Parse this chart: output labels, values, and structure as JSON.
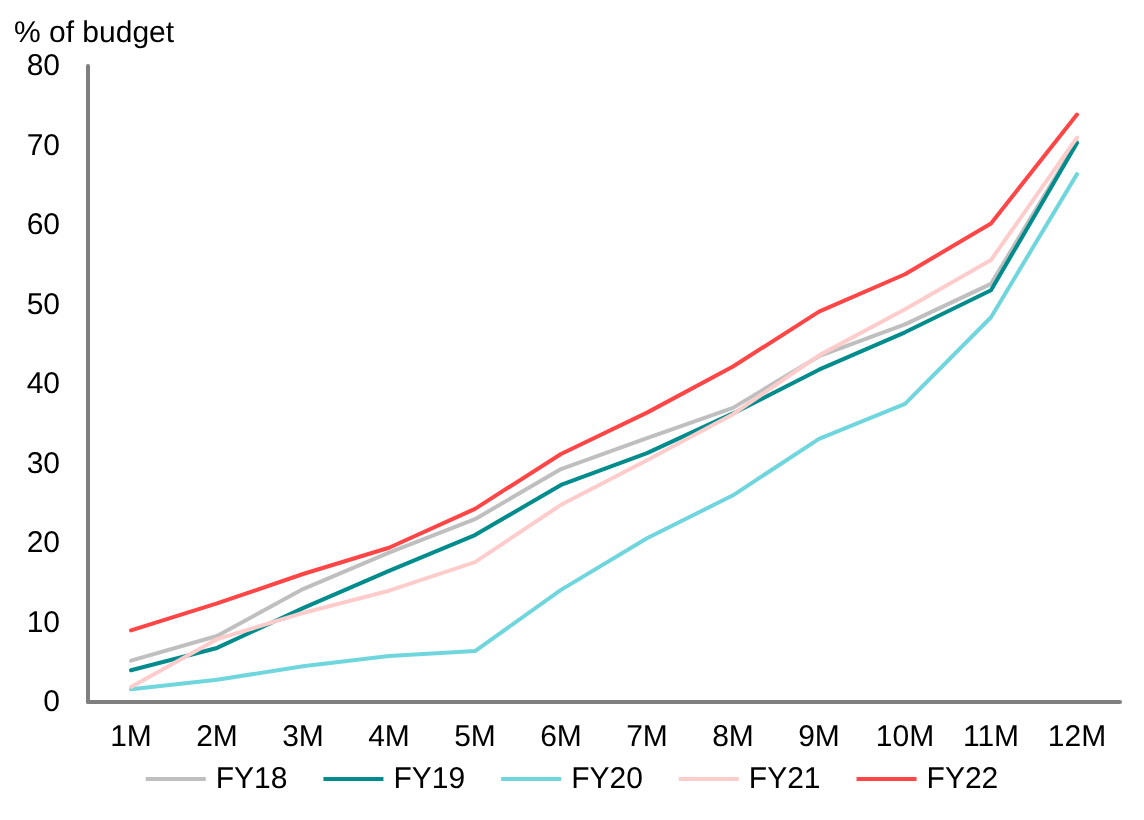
{
  "chart_data": {
    "type": "line",
    "ylabel": "% of budget",
    "categories": [
      "1M",
      "2M",
      "3M",
      "4M",
      "5M",
      "6M",
      "7M",
      "8M",
      "9M",
      "10M",
      "11M",
      "12M"
    ],
    "series": [
      {
        "name": "FY18",
        "color": "#bfbfbf",
        "values": [
          5.2,
          8.3,
          14.2,
          18.8,
          23,
          29.3,
          33.2,
          37,
          43.5,
          47.5,
          52.6,
          70.5
        ]
      },
      {
        "name": "FY19",
        "color": "#008c8c",
        "values": [
          4,
          6.8,
          11.8,
          16.5,
          21,
          27.3,
          31.3,
          36.3,
          41.8,
          46.5,
          51.8,
          70.3
        ]
      },
      {
        "name": "FY20",
        "color": "#70d6de",
        "values": [
          1.6,
          2.8,
          4.5,
          5.8,
          6.4,
          14.1,
          20.6,
          26,
          33.1,
          37.5,
          48.4,
          66.4
        ]
      },
      {
        "name": "FY21",
        "color": "#ffcccc",
        "values": [
          1.9,
          7.9,
          11.2,
          14,
          17.6,
          24.8,
          30.4,
          36.2,
          43.6,
          49.4,
          55.6,
          71
        ]
      },
      {
        "name": "FY22",
        "color": "#ff4545",
        "values": [
          9,
          12.4,
          16.1,
          19.4,
          24.3,
          31.2,
          36.4,
          42.2,
          49.1,
          53.8,
          60.2,
          73.9
        ]
      }
    ],
    "ylim": [
      0,
      80
    ],
    "yticks": [
      0,
      10,
      20,
      30,
      40,
      50,
      60,
      70,
      80
    ],
    "grid": false,
    "legend": "bottom",
    "marker": "none",
    "line_style": "solid"
  }
}
